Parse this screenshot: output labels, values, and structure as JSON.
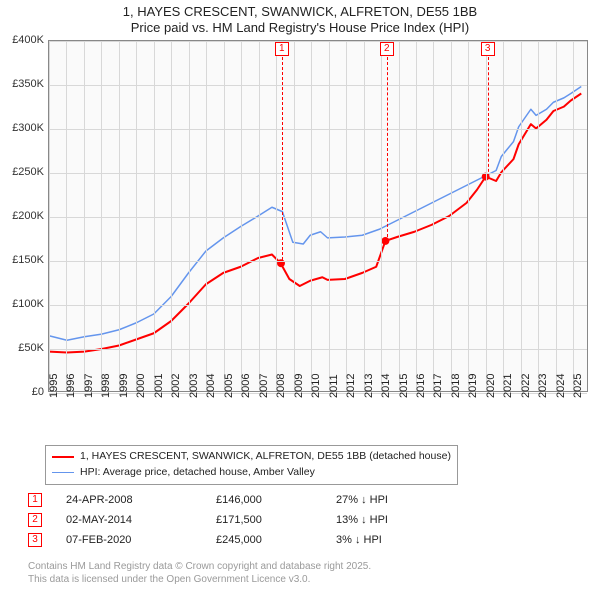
{
  "title": {
    "line1": "1, HAYES CRESCENT, SWANWICK, ALFRETON, DE55 1BB",
    "line2": "Price paid vs. HM Land Registry's House Price Index (HPI)",
    "fontsize": 13
  },
  "chart": {
    "type": "line",
    "background_color": "#fafafa",
    "grid_color": "#d8d8d8",
    "border_color": "#888888",
    "x": {
      "min": 1995,
      "max": 2025.9,
      "ticks": [
        1995,
        1996,
        1997,
        1998,
        1999,
        2000,
        2001,
        2002,
        2003,
        2004,
        2005,
        2006,
        2007,
        2008,
        2009,
        2010,
        2011,
        2012,
        2013,
        2014,
        2015,
        2016,
        2017,
        2018,
        2019,
        2020,
        2021,
        2022,
        2023,
        2024,
        2025
      ]
    },
    "y": {
      "min": 0,
      "max": 400000,
      "ticks": [
        0,
        50000,
        100000,
        150000,
        200000,
        250000,
        300000,
        350000,
        400000
      ],
      "labels": [
        "£0",
        "£50K",
        "£100K",
        "£150K",
        "£200K",
        "£250K",
        "£300K",
        "£350K",
        "£400K"
      ]
    },
    "series": [
      {
        "name": "1, HAYES CRESCENT, SWANWICK, ALFRETON, DE55 1BB (detached house)",
        "color": "#ff0000",
        "width": 2,
        "points": [
          [
            1995,
            45000
          ],
          [
            1996,
            44000
          ],
          [
            1997,
            45000
          ],
          [
            1998,
            48000
          ],
          [
            1999,
            52000
          ],
          [
            2000,
            59000
          ],
          [
            2001,
            66000
          ],
          [
            2002,
            80000
          ],
          [
            2003,
            100000
          ],
          [
            2004,
            122000
          ],
          [
            2005,
            135000
          ],
          [
            2006,
            142000
          ],
          [
            2007,
            152000
          ],
          [
            2007.8,
            156000
          ],
          [
            2008.3,
            146000
          ],
          [
            2008.8,
            128000
          ],
          [
            2009.4,
            120000
          ],
          [
            2010,
            126000
          ],
          [
            2010.7,
            130000
          ],
          [
            2011,
            127000
          ],
          [
            2012,
            128000
          ],
          [
            2013,
            135000
          ],
          [
            2013.8,
            142000
          ],
          [
            2014.33,
            171500
          ],
          [
            2015,
            176000
          ],
          [
            2016,
            182000
          ],
          [
            2017,
            190000
          ],
          [
            2018,
            200000
          ],
          [
            2019,
            215000
          ],
          [
            2019.6,
            230000
          ],
          [
            2020.1,
            245000
          ],
          [
            2020.7,
            240000
          ],
          [
            2021,
            250000
          ],
          [
            2021.7,
            265000
          ],
          [
            2022,
            282000
          ],
          [
            2022.7,
            305000
          ],
          [
            2023,
            300000
          ],
          [
            2023.6,
            310000
          ],
          [
            2024,
            320000
          ],
          [
            2024.6,
            325000
          ],
          [
            2025,
            332000
          ],
          [
            2025.6,
            340000
          ]
        ]
      },
      {
        "name": "HPI: Average price, detached house, Amber Valley",
        "color": "#6495ed",
        "width": 1.5,
        "points": [
          [
            1995,
            63000
          ],
          [
            1996,
            58000
          ],
          [
            1997,
            62000
          ],
          [
            1998,
            65000
          ],
          [
            1999,
            70000
          ],
          [
            2000,
            78000
          ],
          [
            2001,
            88000
          ],
          [
            2002,
            108000
          ],
          [
            2003,
            135000
          ],
          [
            2004,
            160000
          ],
          [
            2005,
            175000
          ],
          [
            2006,
            188000
          ],
          [
            2007,
            200000
          ],
          [
            2007.8,
            210000
          ],
          [
            2008.4,
            205000
          ],
          [
            2009,
            170000
          ],
          [
            2009.6,
            168000
          ],
          [
            2010,
            178000
          ],
          [
            2010.6,
            182000
          ],
          [
            2011,
            175000
          ],
          [
            2012,
            176000
          ],
          [
            2013,
            178000
          ],
          [
            2014,
            185000
          ],
          [
            2015,
            195000
          ],
          [
            2016,
            205000
          ],
          [
            2017,
            215000
          ],
          [
            2018,
            225000
          ],
          [
            2019,
            235000
          ],
          [
            2020,
            245000
          ],
          [
            2020.7,
            252000
          ],
          [
            2021,
            268000
          ],
          [
            2021.7,
            285000
          ],
          [
            2022,
            302000
          ],
          [
            2022.7,
            322000
          ],
          [
            2023,
            315000
          ],
          [
            2023.6,
            322000
          ],
          [
            2024,
            330000
          ],
          [
            2024.6,
            335000
          ],
          [
            2025,
            340000
          ],
          [
            2025.6,
            348000
          ]
        ]
      }
    ],
    "sale_dots": {
      "color": "#ff0000",
      "radius": 4,
      "points": [
        [
          2008.32,
          146000
        ],
        [
          2014.33,
          171500
        ],
        [
          2020.1,
          245000
        ]
      ]
    },
    "markers": [
      {
        "n": "1",
        "x": 2008.32
      },
      {
        "n": "2",
        "x": 2014.33
      },
      {
        "n": "3",
        "x": 2020.1
      }
    ]
  },
  "legend": {
    "items": [
      {
        "color": "#ff0000",
        "width": 2,
        "label": "1, HAYES CRESCENT, SWANWICK, ALFRETON, DE55 1BB (detached house)"
      },
      {
        "color": "#6495ed",
        "width": 1.5,
        "label": "HPI: Average price, detached house, Amber Valley"
      }
    ]
  },
  "events": [
    {
      "n": "1",
      "date": "24-APR-2008",
      "price": "£146,000",
      "diff": "27% ↓ HPI"
    },
    {
      "n": "2",
      "date": "02-MAY-2014",
      "price": "£171,500",
      "diff": "13% ↓ HPI"
    },
    {
      "n": "3",
      "date": "07-FEB-2020",
      "price": "£245,000",
      "diff": "3% ↓ HPI"
    }
  ],
  "footer": {
    "line1": "Contains HM Land Registry data © Crown copyright and database right 2025.",
    "line2": "This data is licensed under the Open Government Licence v3.0."
  }
}
